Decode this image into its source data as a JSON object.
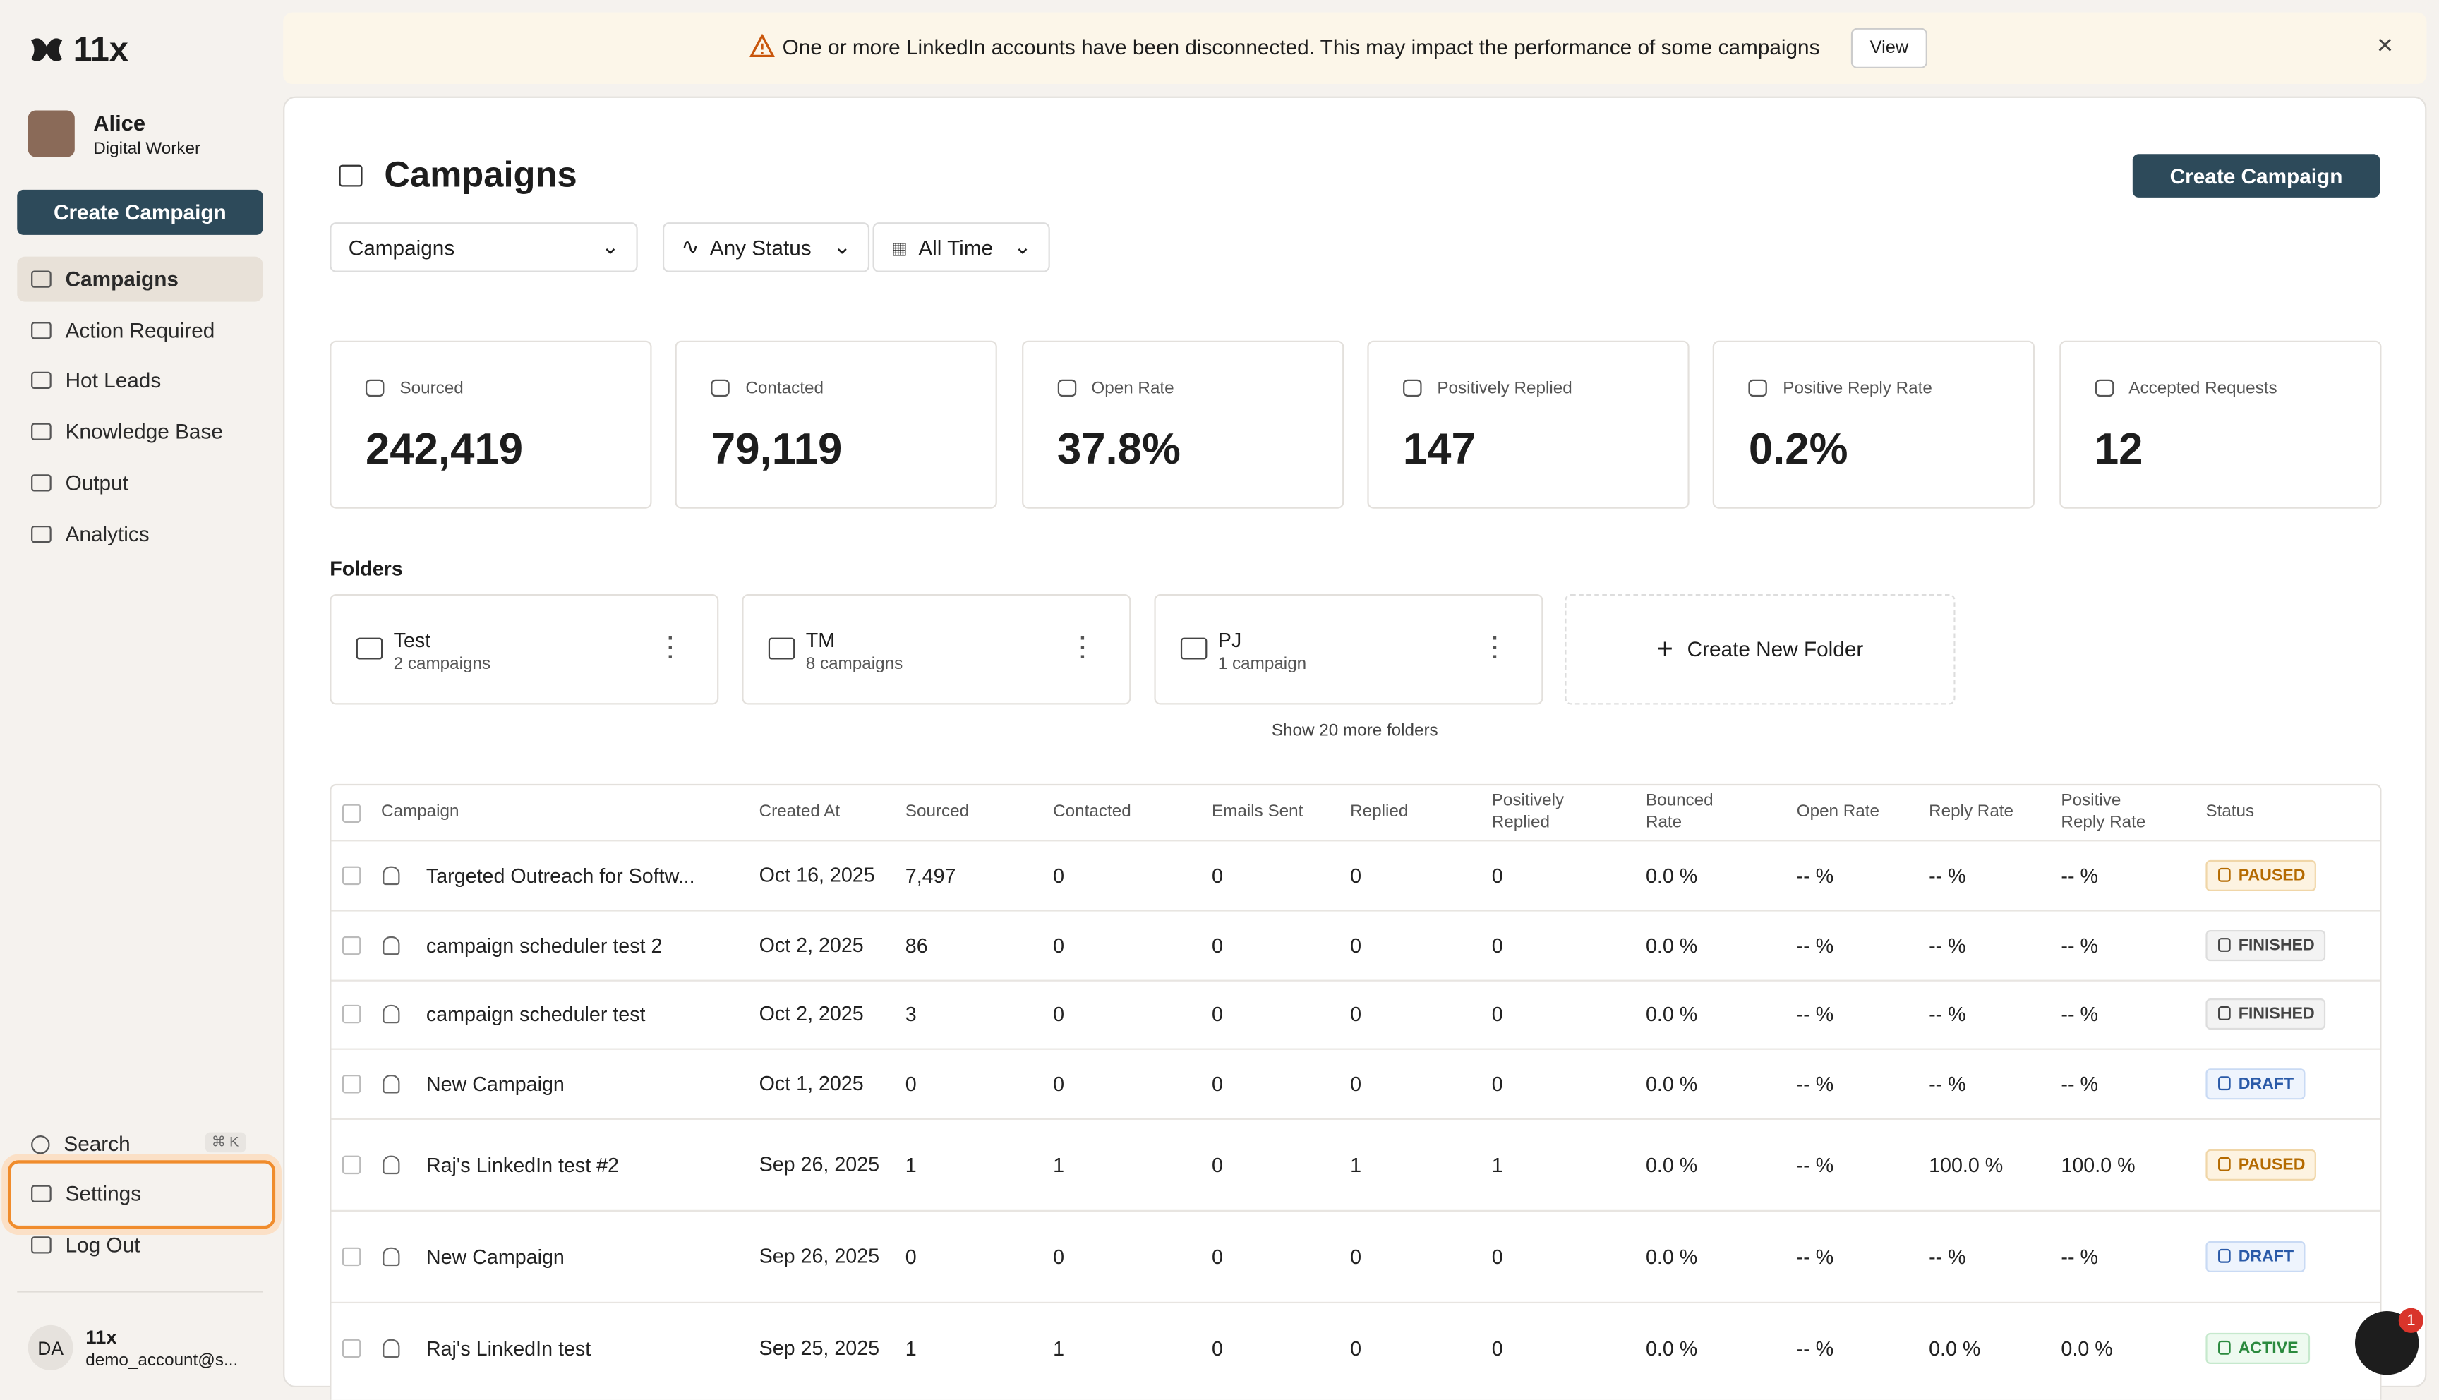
{
  "banner": {
    "message": "One or more LinkedIn accounts have been disconnected. This may impact the performance of some campaigns",
    "action": "View"
  },
  "sidebar": {
    "brand": "11x",
    "user_name": "Alice",
    "user_role": "Digital Worker",
    "create_button": "Create Campaign",
    "nav": [
      "Campaigns",
      "Action Required",
      "Hot Leads",
      "Knowledge Base",
      "Output",
      "Analytics"
    ],
    "search": "Search",
    "search_shortcut": "⌘ K",
    "settings": "Settings",
    "logout": "Log Out",
    "account_initials": "DA",
    "account_name": "11x",
    "account_email": "demo_account@s..."
  },
  "header": {
    "title": "Campaigns",
    "create_button": "Create Campaign"
  },
  "filters": [
    "Campaigns",
    "Any Status",
    "All Time"
  ],
  "stats": [
    {
      "label": "Sourced",
      "value": "242,419"
    },
    {
      "label": "Contacted",
      "value": "79,119"
    },
    {
      "label": "Open Rate",
      "value": "37.8%"
    },
    {
      "label": "Positively Replied",
      "value": "147"
    },
    {
      "label": "Positive Reply Rate",
      "value": "0.2%"
    },
    {
      "label": "Accepted Requests",
      "value": "12"
    }
  ],
  "folders": {
    "title": "Folders",
    "items": [
      {
        "name": "Test",
        "count": "2 campaigns"
      },
      {
        "name": "TM",
        "count": "8 campaigns"
      },
      {
        "name": "PJ",
        "count": "1 campaign"
      }
    ],
    "create": "Create New Folder",
    "more": "Show 20 more folders"
  },
  "table": {
    "columns": [
      "Campaign",
      "Created At",
      "Sourced",
      "Contacted",
      "Emails Sent",
      "Replied",
      "Positively Replied",
      "Bounced Rate",
      "Open Rate",
      "Reply Rate",
      "Positive Reply Rate",
      "Status"
    ],
    "rows": [
      [
        "Targeted Outreach for Softw...",
        "Oct 16, 2025",
        "7,497",
        "0",
        "0",
        "0",
        "0",
        "0.0 %",
        "-- %",
        "-- %",
        "-- %",
        "PAUSED"
      ],
      [
        "campaign scheduler test 2",
        "Oct 2, 2025",
        "86",
        "0",
        "0",
        "0",
        "0",
        "0.0 %",
        "-- %",
        "-- %",
        "-- %",
        "FINISHED"
      ],
      [
        "campaign scheduler test",
        "Oct 2, 2025",
        "3",
        "0",
        "0",
        "0",
        "0",
        "0.0 %",
        "-- %",
        "-- %",
        "-- %",
        "FINISHED"
      ],
      [
        "New Campaign",
        "Oct 1, 2025",
        "0",
        "0",
        "0",
        "0",
        "0",
        "0.0 %",
        "-- %",
        "-- %",
        "-- %",
        "DRAFT"
      ],
      [
        "Raj's LinkedIn test #2",
        "Sep 26, 2025",
        "1",
        "1",
        "0",
        "1",
        "1",
        "0.0 %",
        "-- %",
        "100.0 %",
        "100.0 %",
        "PAUSED"
      ],
      [
        "New Campaign",
        "Sep 26, 2025",
        "0",
        "0",
        "0",
        "0",
        "0",
        "0.0 %",
        "-- %",
        "-- %",
        "-- %",
        "DRAFT"
      ],
      [
        "Raj's LinkedIn test",
        "Sep 25, 2025",
        "1",
        "1",
        "0",
        "0",
        "0",
        "0.0 %",
        "-- %",
        "0.0 %",
        "0.0 %",
        "ACTIVE"
      ]
    ]
  },
  "chat_badge": "1"
}
